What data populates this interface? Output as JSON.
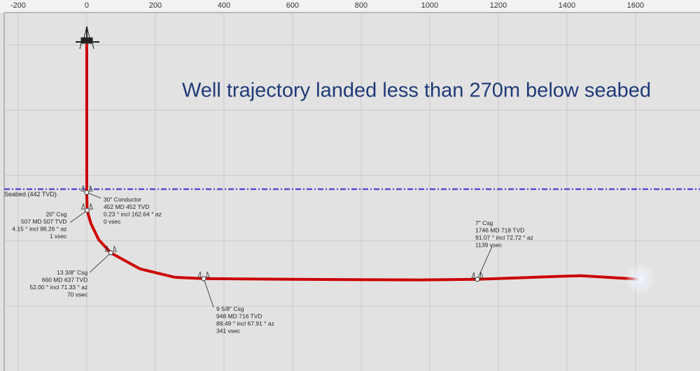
{
  "chart_data": {
    "type": "line",
    "title": "Well trajectory landed less than 270m below seabed",
    "xlim": [
      -253,
      1788
    ],
    "ylim": [
      -112,
      999
    ],
    "xticks": [
      -200,
      0,
      200,
      400,
      600,
      800,
      1000,
      1200,
      1400,
      1600
    ],
    "ygrid": [
      0,
      200,
      400,
      600,
      800
    ],
    "grid": true,
    "series": [
      {
        "color": "#cc0000",
        "x": [
          0,
          0,
          0,
          1,
          12,
          35,
          70,
          155,
          257,
          341,
          600,
          971,
          1139,
          1380,
          1441,
          1584,
          1614
        ],
        "values": [
          0,
          452,
          452,
          507,
          547,
          597,
          637,
          686,
          712,
          716,
          718,
          720,
          718,
          709,
          707,
          716,
          718
        ]
      }
    ],
    "seabed": {
      "label": "Seabed (442 TVD)",
      "value": 442,
      "color": "#5a4fd0"
    },
    "annotations": [
      {
        "x": 0,
        "y": 452,
        "text": [
          "30\" Conductor",
          "452 MD 452 TVD",
          "0.23 ° incl 162.64 ° az",
          "0 vsec"
        ]
      },
      {
        "x": 1,
        "y": 507,
        "text": [
          "20\" Csg",
          "507 MD 507 TVD",
          "4.15 ° incl 98.26 ° az",
          "1 vsec"
        ]
      },
      {
        "x": 70,
        "y": 637,
        "text": [
          "13 3/8\" Csg",
          "660 MD 637 TVD",
          "52.00 ° incl 71.33 ° az",
          "70 vsec"
        ]
      },
      {
        "x": 341,
        "y": 716,
        "text": [
          "9 5/8\" Csg",
          "948 MD 716 TVD",
          "89.49 ° incl 67.91 ° az",
          "341 vsec"
        ]
      },
      {
        "x": 1139,
        "y": 718,
        "text": [
          "7\" Csg",
          "1746 MD 718 TVD",
          "91.07 ° incl 72.72 ° az",
          "1139 vsec"
        ]
      }
    ]
  }
}
